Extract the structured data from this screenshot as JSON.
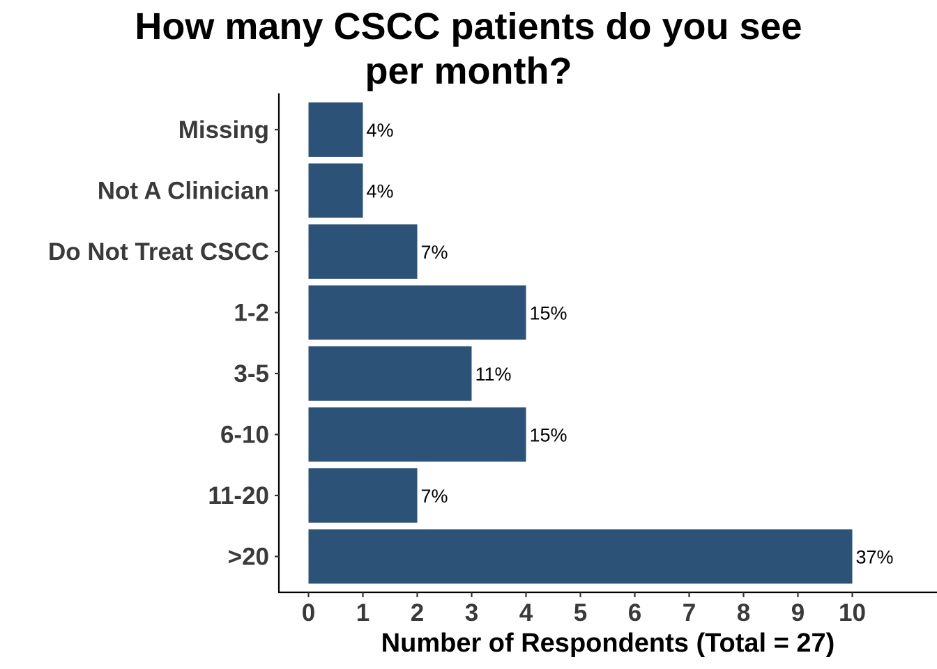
{
  "chart_data": {
    "type": "bar",
    "orientation": "horizontal",
    "title_lines": [
      "How many CSCC patients do you see",
      "per month?"
    ],
    "xlabel": "Number of Respondents (Total = 27)",
    "ylabel": "",
    "categories": [
      "Missing",
      "Not A Clinician",
      "Do Not Treat CSCC",
      "1-2",
      "3-5",
      "6-10",
      "11-20",
      ">20"
    ],
    "values": [
      1,
      1,
      2,
      4,
      3,
      4,
      2,
      10
    ],
    "data_labels": [
      "4%",
      "4%",
      "7%",
      "15%",
      "11%",
      "15%",
      "7%",
      "37%"
    ],
    "x_ticks": [
      "0",
      "1",
      "2",
      "3",
      "4",
      "5",
      "6",
      "7",
      "8",
      "9",
      "10"
    ],
    "xlim": [
      0,
      11.5
    ],
    "grid": false,
    "legend": "none",
    "bar_color": "#2c5277"
  }
}
